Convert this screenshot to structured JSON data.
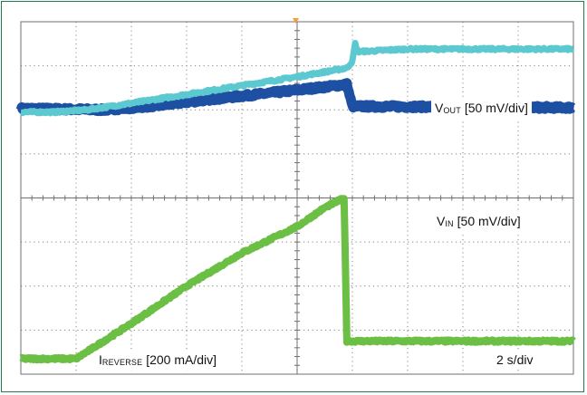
{
  "colors": {
    "frame": "#1f7a4d",
    "grid": "#6f6f6f",
    "vout": "#5cc8d0",
    "vin": "#1d4fa3",
    "ireverse": "#6cbf45",
    "trigger_marker": "#f0a040"
  },
  "labels": {
    "vout_main": "V",
    "vout_sub": "OUT",
    "vout_scale": " [50 mV/div]",
    "vin_main": "V",
    "vin_sub": "IN",
    "vin_scale": " [50 mV/div]",
    "irev_main": "I",
    "irev_sub": "REVERSE",
    "irev_scale": " [200 mA/div]",
    "timebase": "2 s/div"
  },
  "chart_data": {
    "type": "line",
    "title": "",
    "x_unit": "divisions (2 s/div)",
    "y_unit": "divisions",
    "xlim": [
      0,
      10
    ],
    "ylim": [
      0,
      8
    ],
    "grid": true,
    "series": [
      {
        "name": "VOUT [50 mV/div]",
        "color": "#5cc8d0",
        "points": [
          [
            0,
            5.95
          ],
          [
            0.6,
            5.95
          ],
          [
            1.2,
            6.0
          ],
          [
            2.0,
            6.15
          ],
          [
            3.0,
            6.35
          ],
          [
            4.0,
            6.55
          ],
          [
            5.0,
            6.75
          ],
          [
            5.9,
            6.95
          ],
          [
            6.0,
            7.1
          ],
          [
            6.05,
            7.5
          ],
          [
            6.1,
            7.32
          ],
          [
            7.0,
            7.38
          ],
          [
            10,
            7.38
          ]
        ]
      },
      {
        "name": "VIN [50 mV/div]",
        "color": "#1d4fa3",
        "points": [
          [
            0,
            6.03
          ],
          [
            1.5,
            6.0
          ],
          [
            2.5,
            6.1
          ],
          [
            3.5,
            6.25
          ],
          [
            4.5,
            6.38
          ],
          [
            5.5,
            6.52
          ],
          [
            5.9,
            6.58
          ],
          [
            6.0,
            6.08
          ],
          [
            10,
            6.05
          ]
        ]
      },
      {
        "name": "IREVERSE [200 mA/div]",
        "color": "#6cbf45",
        "points": [
          [
            0,
            0.35
          ],
          [
            0.5,
            0.35
          ],
          [
            1.0,
            0.35
          ],
          [
            2.0,
            1.15
          ],
          [
            3.0,
            2.0
          ],
          [
            4.0,
            2.75
          ],
          [
            5.0,
            3.35
          ],
          [
            5.5,
            3.78
          ],
          [
            5.85,
            4.0
          ],
          [
            5.9,
            0.75
          ],
          [
            10,
            0.75
          ]
        ]
      }
    ]
  }
}
